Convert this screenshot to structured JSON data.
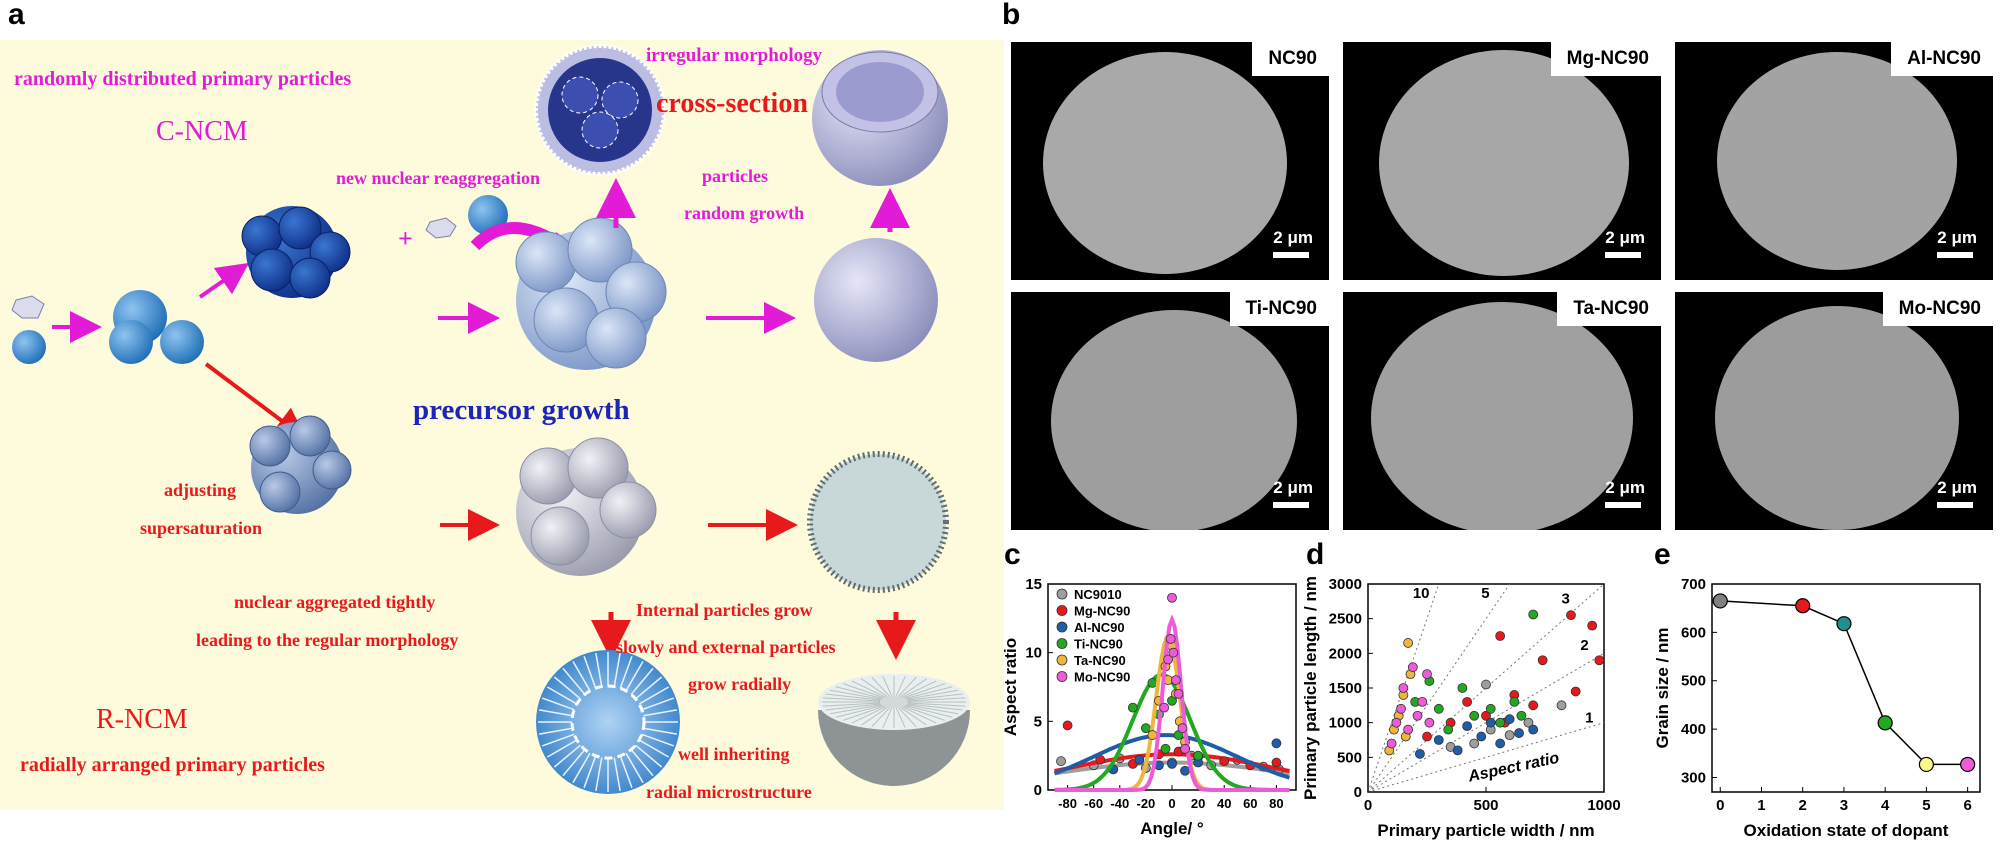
{
  "panels": {
    "a": "a",
    "b": "b",
    "c": "c",
    "d": "d",
    "e": "e"
  },
  "a": {
    "random_primary": "randomly distributed primary particles",
    "c_ncm": "C-NCM",
    "irregular": "irregular morphology",
    "cross_section": "cross-section",
    "new_nuclear": "new nuclear reaggregation",
    "plus": "+",
    "particles": "particles",
    "random_growth": "random growth",
    "precursor_growth": "precursor growth",
    "adjusting": "adjusting",
    "supersaturation": "supersaturation",
    "nuclear_aggregated": "nuclear aggregated tightly",
    "leading_regular": "leading to the regular morphology",
    "internal_grow": "Internal particles grow",
    "slowly_external": "slowly and external particles",
    "grow_radially": "grow radially",
    "r_ncm": "R-NCM",
    "radially_arranged": "radially arranged primary particles",
    "well_inheriting": "well inheriting",
    "radial_micro": "radial microstructure",
    "colors": {
      "magenta": "#e21bd6",
      "red": "#e8191b",
      "blue": "#1d25b8",
      "background": "#fdfbdb"
    }
  },
  "b": {
    "images": [
      {
        "label": "NC90",
        "scale": "2 μm"
      },
      {
        "label": "Mg-NC90",
        "scale": "2 μm"
      },
      {
        "label": "Al-NC90",
        "scale": "2 μm"
      },
      {
        "label": "Ti-NC90",
        "scale": "2 μm"
      },
      {
        "label": "Ta-NC90",
        "scale": "2 μm"
      },
      {
        "label": "Mo-NC90",
        "scale": "2 μm"
      }
    ]
  },
  "chart_data": [
    {
      "panel": "c",
      "type": "scatter",
      "xlabel": "Angle/ °",
      "ylabel": "Aspect ratio",
      "xticks": [
        -80,
        -60,
        -40,
        -20,
        0,
        20,
        40,
        60,
        80
      ],
      "yticks": [
        0,
        5,
        10,
        15
      ],
      "xlim": [
        -95,
        95
      ],
      "ylim": [
        0,
        15
      ],
      "legend_position": "top-left",
      "series": [
        {
          "name": "NC9010",
          "color": "#9e9e9e",
          "fit": {
            "amp": 2.0,
            "center": 0,
            "width": 90
          },
          "points": [
            [
              -85,
              2.1
            ],
            [
              -60,
              1.8
            ],
            [
              -40,
              2.3
            ],
            [
              -20,
              1.6
            ],
            [
              0,
              2.0
            ],
            [
              15,
              2.5
            ],
            [
              30,
              1.8
            ],
            [
              50,
              2.2
            ],
            [
              70,
              1.7
            ],
            [
              82,
              1.5
            ]
          ]
        },
        {
          "name": "Mg-NC90",
          "color": "#e8191b",
          "fit": {
            "amp": 2.6,
            "center": 0,
            "width": 80
          },
          "points": [
            [
              -80,
              4.7
            ],
            [
              -55,
              2.2
            ],
            [
              -30,
              1.9
            ],
            [
              -10,
              2.6
            ],
            [
              5,
              2.8
            ],
            [
              20,
              2.4
            ],
            [
              40,
              2.1
            ],
            [
              60,
              1.8
            ],
            [
              80,
              2.0
            ]
          ]
        },
        {
          "name": "Al-NC90",
          "color": "#1f5da8",
          "fit": {
            "amp": 4.0,
            "center": -5,
            "width": 55
          },
          "points": [
            [
              -45,
              1.5
            ],
            [
              -25,
              2.2
            ],
            [
              -10,
              1.8
            ],
            [
              0,
              1.9
            ],
            [
              10,
              1.4
            ],
            [
              20,
              2.0
            ],
            [
              80,
              3.4
            ]
          ]
        },
        {
          "name": "Ti-NC90",
          "color": "#22a822",
          "fit": {
            "amp": 8.4,
            "center": -8,
            "width": 22
          },
          "points": [
            [
              -30,
              6.0
            ],
            [
              -20,
              4.5
            ],
            [
              -15,
              7.8
            ],
            [
              -10,
              5.5
            ],
            [
              -5,
              3.0
            ],
            [
              0,
              6.5
            ],
            [
              5,
              4.0
            ],
            [
              10,
              3.0
            ],
            [
              20,
              2.5
            ]
          ]
        },
        {
          "name": "Ta-NC90",
          "color": "#f0b63c",
          "fit": {
            "amp": 11.2,
            "center": -3,
            "width": 9
          },
          "points": [
            [
              -15,
              4.0
            ],
            [
              -10,
              6.5
            ],
            [
              -5,
              9.0
            ],
            [
              -3,
              8.0
            ],
            [
              0,
              10.5
            ],
            [
              3,
              7.0
            ],
            [
              6,
              5.0
            ],
            [
              10,
              3.5
            ]
          ]
        },
        {
          "name": "Mo-NC90",
          "color": "#ee5bd8",
          "fit": {
            "amp": 12.4,
            "center": 0,
            "width": 7
          },
          "points": [
            [
              -6,
              6.0
            ],
            [
              -3,
              9.5
            ],
            [
              -1,
              11.0
            ],
            [
              0,
              14.0
            ],
            [
              1,
              10.0
            ],
            [
              3,
              8.0
            ],
            [
              5,
              7.0
            ],
            [
              8,
              4.5
            ],
            [
              10,
              3.0
            ]
          ]
        }
      ]
    },
    {
      "panel": "d",
      "type": "scatter",
      "xlabel": "Primary particle width / nm",
      "ylabel": "Primary particle length / nm",
      "xticks": [
        0,
        500,
        1000
      ],
      "yticks": [
        0,
        500,
        1000,
        1500,
        2000,
        2500,
        3000
      ],
      "xlim": [
        0,
        1000
      ],
      "ylim": [
        0,
        3000
      ],
      "aspect_lines": [
        10,
        5,
        3,
        2,
        1
      ],
      "annotation": "Aspect ratio",
      "series": [
        {
          "name": "NC9010",
          "color": "#9e9e9e",
          "points": [
            [
              350,
              650
            ],
            [
              450,
              700
            ],
            [
              520,
              900
            ],
            [
              600,
              820
            ],
            [
              680,
              1000
            ],
            [
              820,
              1250
            ],
            [
              500,
              1550
            ]
          ]
        },
        {
          "name": "Mg-NC90",
          "color": "#e8191b",
          "points": [
            [
              250,
              800
            ],
            [
              350,
              1000
            ],
            [
              420,
              1300
            ],
            [
              500,
              1100
            ],
            [
              580,
              1000
            ],
            [
              620,
              1400
            ],
            [
              700,
              1250
            ],
            [
              740,
              1900
            ],
            [
              860,
              2550
            ],
            [
              880,
              1450
            ],
            [
              950,
              2400
            ],
            [
              980,
              1900
            ],
            [
              560,
              2250
            ]
          ]
        },
        {
          "name": "Al-NC90",
          "color": "#1f5da8",
          "points": [
            [
              220,
              550
            ],
            [
              300,
              750
            ],
            [
              380,
              600
            ],
            [
              420,
              950
            ],
            [
              480,
              800
            ],
            [
              520,
              1000
            ],
            [
              560,
              700
            ],
            [
              600,
              1050
            ],
            [
              640,
              850
            ],
            [
              700,
              900
            ]
          ]
        },
        {
          "name": "Ti-NC90",
          "color": "#22a822",
          "points": [
            [
              200,
              1300
            ],
            [
              260,
              1600
            ],
            [
              300,
              1200
            ],
            [
              340,
              900
            ],
            [
              400,
              1500
            ],
            [
              450,
              1100
            ],
            [
              520,
              1200
            ],
            [
              560,
              1000
            ],
            [
              620,
              1300
            ],
            [
              700,
              2560
            ],
            [
              650,
              1100
            ]
          ]
        },
        {
          "name": "Ta-NC90",
          "color": "#f0b63c",
          "points": [
            [
              90,
              600
            ],
            [
              110,
              900
            ],
            [
              130,
              1100
            ],
            [
              150,
              1400
            ],
            [
              170,
              2150
            ],
            [
              180,
              1700
            ],
            [
              160,
              800
            ]
          ]
        },
        {
          "name": "Mo-NC90",
          "color": "#ee5bd8",
          "points": [
            [
              100,
              700
            ],
            [
              120,
              1000
            ],
            [
              140,
              1200
            ],
            [
              150,
              1500
            ],
            [
              170,
              900
            ],
            [
              190,
              1800
            ],
            [
              210,
              1100
            ],
            [
              230,
              1300
            ],
            [
              260,
              1000
            ],
            [
              250,
              1700
            ]
          ]
        }
      ]
    },
    {
      "panel": "e",
      "type": "line",
      "xlabel": "Oxidation state of dopant",
      "ylabel": "Grain size / nm",
      "xticks": [
        0,
        1,
        2,
        3,
        4,
        5,
        6
      ],
      "yticks": [
        300,
        400,
        500,
        600,
        700
      ],
      "xlim": [
        -0.2,
        6.3
      ],
      "ylim": [
        270,
        700
      ],
      "points": [
        {
          "x": 0,
          "y": 665,
          "color": "#808080"
        },
        {
          "x": 2,
          "y": 655,
          "color": "#e8191b"
        },
        {
          "x": 3,
          "y": 618,
          "color": "#1f8f8f"
        },
        {
          "x": 4,
          "y": 413,
          "color": "#22a822"
        },
        {
          "x": 5,
          "y": 327,
          "color": "#f7f78a"
        },
        {
          "x": 6,
          "y": 327,
          "color": "#ee5bd8"
        }
      ]
    }
  ]
}
